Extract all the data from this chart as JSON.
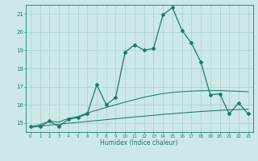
{
  "xlabel": "Humidex (Indice chaleur)",
  "x": [
    0,
    1,
    2,
    3,
    4,
    5,
    6,
    7,
    8,
    9,
    10,
    11,
    12,
    13,
    14,
    15,
    16,
    17,
    18,
    19,
    20,
    21,
    22,
    23
  ],
  "line1": [
    14.8,
    14.8,
    15.1,
    14.8,
    15.2,
    15.3,
    15.5,
    17.1,
    16.0,
    16.4,
    18.9,
    19.3,
    19.0,
    19.1,
    20.95,
    21.35,
    20.1,
    19.4,
    18.35,
    16.55,
    16.6,
    15.5,
    16.1,
    15.5
  ],
  "line2": [
    14.8,
    14.9,
    15.1,
    15.05,
    15.25,
    15.35,
    15.55,
    15.7,
    15.85,
    16.0,
    16.15,
    16.28,
    16.42,
    16.52,
    16.62,
    16.68,
    16.72,
    16.75,
    16.77,
    16.78,
    16.78,
    16.76,
    16.74,
    16.72
  ],
  "line3": [
    14.75,
    14.82,
    14.88,
    14.93,
    14.98,
    15.03,
    15.08,
    15.13,
    15.18,
    15.23,
    15.28,
    15.33,
    15.37,
    15.42,
    15.47,
    15.51,
    15.55,
    15.59,
    15.63,
    15.66,
    15.69,
    15.72,
    15.74,
    15.76
  ],
  "line_color": "#1a7a6e",
  "bg_color": "#cce8e8",
  "grid_color": "#aacfcf",
  "ylim_min": 14.5,
  "ylim_max": 21.5,
  "xlim_min": -0.5,
  "xlim_max": 23.5,
  "yticks": [
    15,
    16,
    17,
    18,
    19,
    20,
    21
  ],
  "xticks": [
    0,
    1,
    2,
    3,
    4,
    5,
    6,
    7,
    8,
    9,
    10,
    11,
    12,
    13,
    14,
    15,
    16,
    17,
    18,
    19,
    20,
    21,
    22,
    23
  ]
}
